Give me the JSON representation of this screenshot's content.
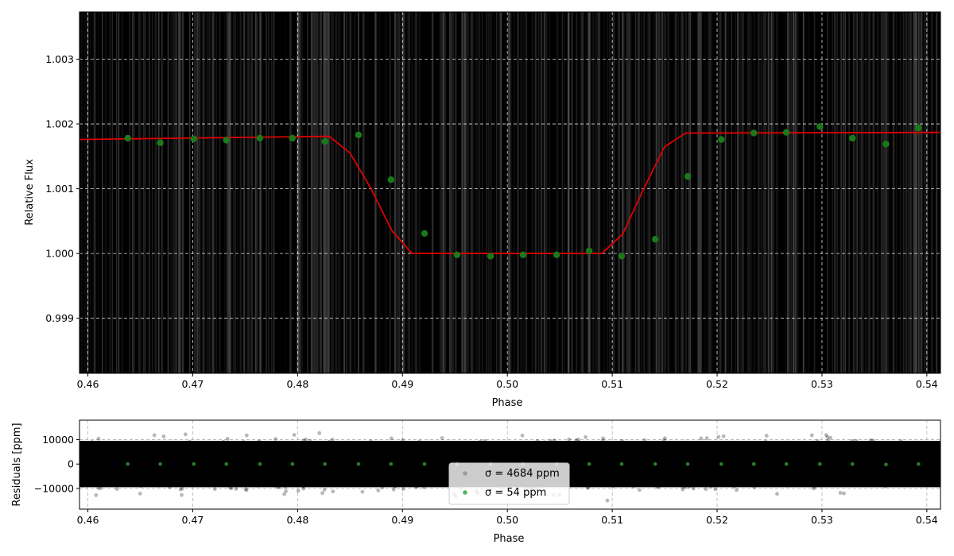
{
  "chart_data": [
    {
      "type": "scatter",
      "panel": "main",
      "xlabel": "Phase",
      "ylabel": "Relative Flux",
      "xlim": [
        0.4592,
        0.5413
      ],
      "ylim": [
        0.99815,
        1.00373
      ],
      "xticks": [
        0.46,
        0.47,
        0.48,
        0.49,
        0.5,
        0.51,
        0.52,
        0.53,
        0.54
      ],
      "xtick_labels": [
        "0.46",
        "0.47",
        "0.48",
        "0.49",
        "0.50",
        "0.51",
        "0.52",
        "0.53",
        "0.54"
      ],
      "yticks": [
        0.999,
        1.0,
        1.001,
        1.002,
        1.003
      ],
      "ytick_labels": [
        "0.999",
        "1.000",
        "1.001",
        "1.002",
        "1.003"
      ],
      "grid": true,
      "background": "dense black raw data points",
      "colors": {
        "model": "#e00000",
        "binned": "#1a7a1a",
        "raw": "#000000",
        "grid": "#ffffff"
      },
      "series": [
        {
          "kind": "line",
          "x": [
            0.4592,
            0.483,
            0.485,
            0.487,
            0.489,
            0.4909,
            0.509,
            0.511,
            0.513,
            0.515,
            0.517,
            0.5413
          ],
          "y": [
            1.00176,
            1.00181,
            1.00155,
            1.001,
            1.00035,
            1.0,
            1.0,
            1.0003,
            1.001,
            1.00165,
            1.00186,
            1.00187
          ]
        },
        {
          "kind": "points",
          "x": [
            0.4638,
            0.4669,
            0.4701,
            0.4732,
            0.4764,
            0.4795,
            0.4826,
            0.4858,
            0.4889,
            0.4921,
            0.4952,
            0.4984,
            0.5015,
            0.5047,
            0.5078,
            0.5109,
            0.5141,
            0.5172,
            0.5204,
            0.5235,
            0.5266,
            0.5298,
            0.5329,
            0.5361,
            0.5392
          ],
          "y": [
            1.00178,
            1.00171,
            1.00177,
            1.00175,
            1.00178,
            1.00178,
            1.00173,
            1.00183,
            1.00114,
            1.00031,
            0.99998,
            0.99996,
            0.99998,
            0.99998,
            1.00004,
            0.99996,
            1.00022,
            1.00119,
            1.00176,
            1.00186,
            1.00187,
            1.00196,
            1.00178,
            1.00169,
            1.00194
          ]
        }
      ]
    },
    {
      "type": "scatter",
      "panel": "residuals",
      "xlabel": "Phase",
      "ylabel": "Residuals [ppm]",
      "xlim": [
        0.4592,
        0.5413
      ],
      "ylim": [
        -18500,
        18000
      ],
      "xticks": [
        0.46,
        0.47,
        0.48,
        0.49,
        0.5,
        0.51,
        0.52,
        0.53,
        0.54
      ],
      "xtick_labels": [
        "0.46",
        "0.47",
        "0.48",
        "0.49",
        "0.50",
        "0.51",
        "0.52",
        "0.53",
        "0.54"
      ],
      "yticks": [
        10000,
        0,
        -10000
      ],
      "ytick_labels": [
        "10000",
        "0",
        "−10000"
      ],
      "grid": true,
      "legend": {
        "position": "bottom-center",
        "entries": [
          {
            "label": "σ = 4684 ppm",
            "color": "#888888"
          },
          {
            "label": "σ = 54 ppm",
            "color": "#2ca02c"
          }
        ]
      },
      "series": [
        {
          "kind": "points",
          "x": [
            0.4638,
            0.4669,
            0.4701,
            0.4732,
            0.4764,
            0.4795,
            0.4826,
            0.4858,
            0.4889,
            0.4921,
            0.4952,
            0.4984,
            0.5015,
            0.5047,
            0.5078,
            0.5109,
            0.5141,
            0.5172,
            0.5204,
            0.5235,
            0.5266,
            0.5298,
            0.5329,
            0.5361,
            0.5392
          ],
          "y": [
            0,
            0,
            0,
            0,
            0,
            0,
            0,
            0,
            0,
            0,
            0,
            0,
            0,
            0,
            0,
            0,
            0,
            0,
            0,
            0,
            0,
            0,
            0,
            -200,
            0
          ]
        }
      ]
    }
  ]
}
